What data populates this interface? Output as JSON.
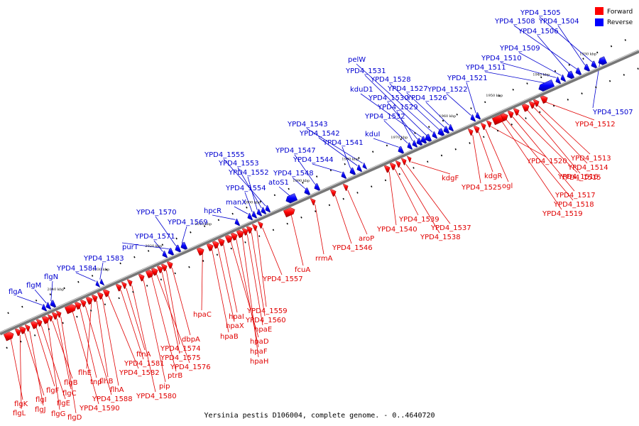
{
  "caption": "Yersinia pestis D106004, complete genome. - 0..4640720",
  "legend": {
    "forward_label": "Forward",
    "reverse_label": "Reverse",
    "forward_color": "#ff0000",
    "reverse_color": "#0000ff"
  },
  "ticks": [
    "2040 kbp",
    "2030 kbp",
    "2020 kbp",
    "2010 kbp",
    "2000 kbp",
    "1990 kbp",
    "1980 kbp",
    "1970 kbp",
    "1960 kbp",
    "1950 kbp",
    "1940 kbp",
    "1930 kbp"
  ],
  "reverse_genes": [
    "flgA",
    "flgM",
    "flgN",
    "YPD4_1584",
    "YPD4_1583",
    "YPD4_1571",
    "purT",
    "YPD4_1570",
    "YPD4_1569",
    "hpcR",
    "manX",
    "YPD4_1554",
    "YPD4_1552",
    "YPD4_1553",
    "YPD4_1555",
    "atoS1",
    "YPD4_1548",
    "YPD4_1547",
    "YPD4_1544",
    "YPD4_1541",
    "YPD4_1542",
    "YPD4_1543",
    "kduI",
    "YPD4_1532",
    "YPD4_1529",
    "YPD4_1530",
    "kduD1",
    "YPD4_1531",
    "pelW",
    "YPD4_1528",
    "YPD4_1527",
    "YPD4_1526",
    "YPD4_1522",
    "YPD4_1521",
    "YPD4_1511",
    "YPD4_1510",
    "YPD4_1509",
    "YPD4_1506",
    "YPD4_1508",
    "YPD4_1504",
    "YPD4_1505",
    "YPD4_1507"
  ],
  "forward_genes": [
    "flgK",
    "flgL",
    "flgI",
    "flgJ",
    "flgF",
    "flgE",
    "flgG",
    "flgB",
    "flgC",
    "flgD",
    "YPD4_1590",
    "tnp",
    "YPD4_1588",
    "flhE",
    "flhB",
    "flhA",
    "YPD4_1582",
    "YPD4_1581",
    "ftnA",
    "YPD4_1580",
    "pip",
    "ptrB",
    "YPD4_1576",
    "YPD4_1575",
    "YPD4_1574",
    "dbpA",
    "hpaC",
    "hpaB",
    "hpaX",
    "hpaI",
    "hpaD",
    "hpaF",
    "hpaH",
    "hpaE",
    "YPD4_1560",
    "YPD4_1559",
    "YPD4_1557",
    "fcuA",
    "rrmA",
    "YPD4_1546",
    "aroP",
    "YPD4_1540",
    "YPD4_1539",
    "YPD4_1538",
    "YPD4_1537",
    "kdgF",
    "YPD4_1525",
    "kdgR",
    "ogl",
    "YPD4_1520",
    "YPD4_1519",
    "YPD4_1518",
    "YPD4_1517",
    "YPD4_1516",
    "YPD4_1515",
    "YPD4_1514",
    "YPD4_1513",
    "YPD4_1512"
  ]
}
